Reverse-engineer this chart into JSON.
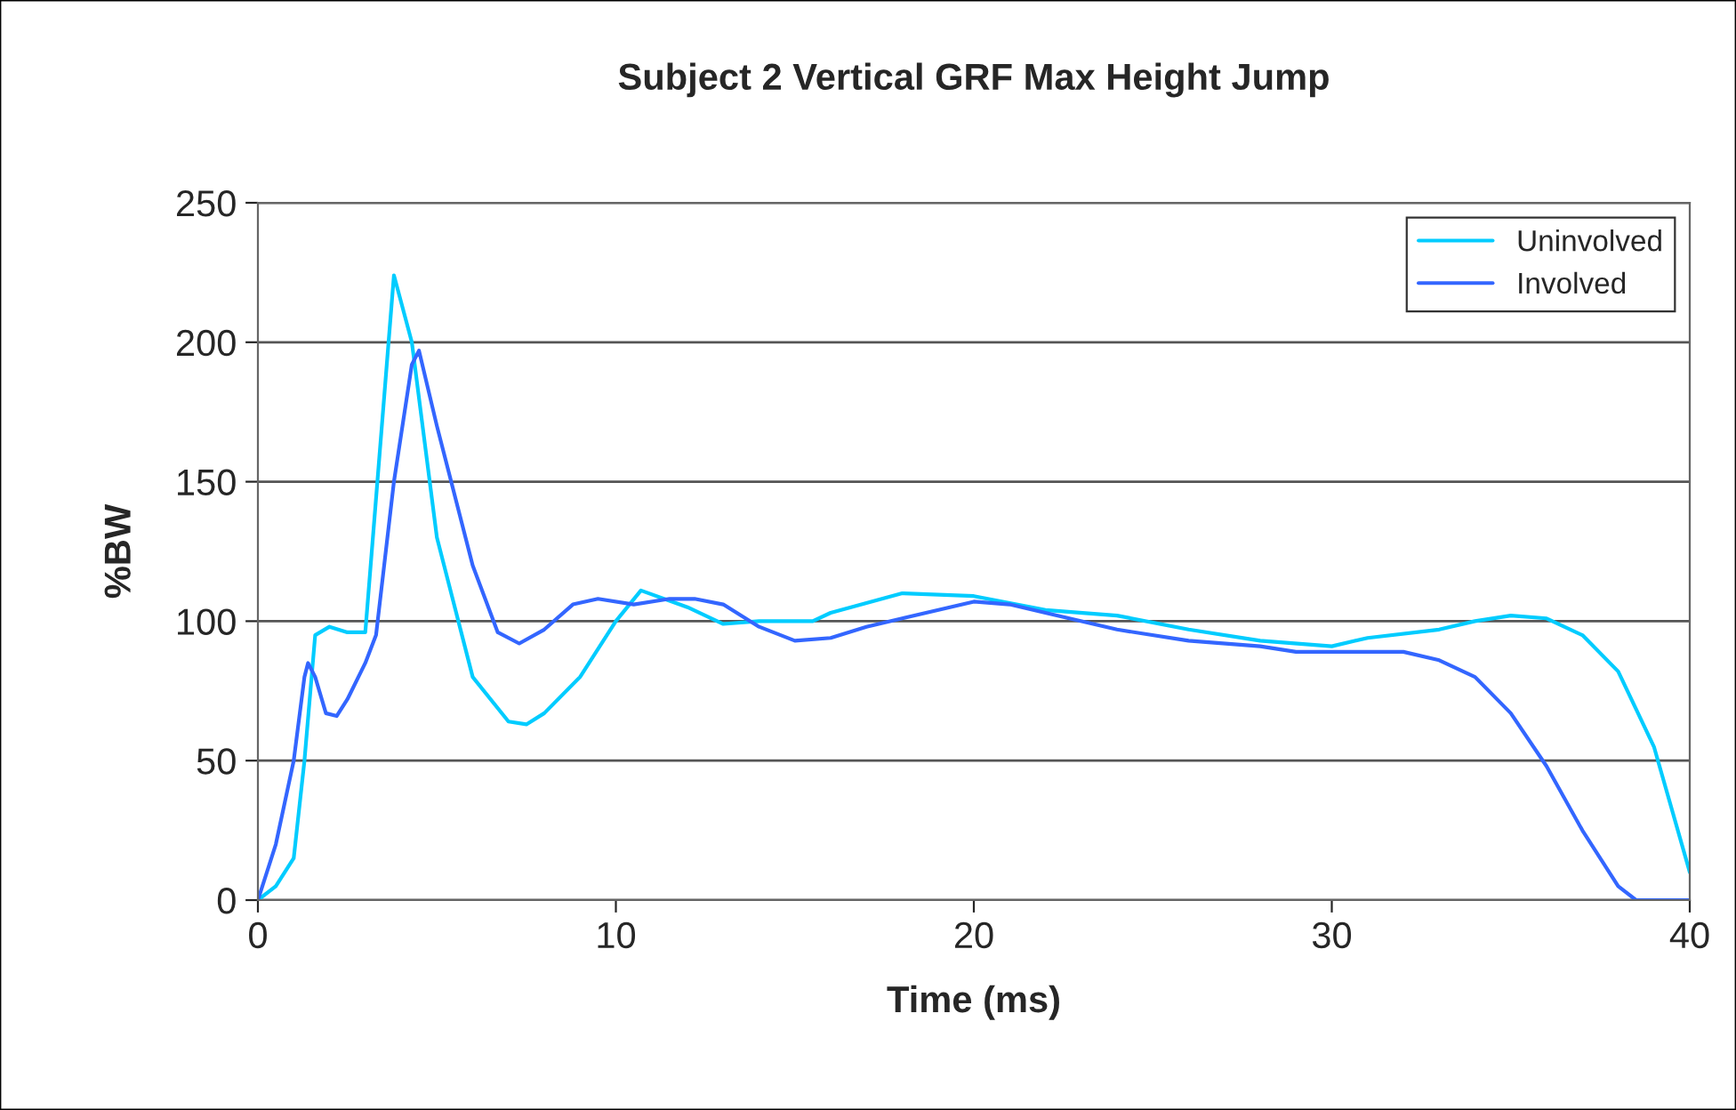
{
  "chart_data": {
    "type": "line",
    "title": "Subject 2 Vertical GRF Max Height Jump",
    "xlabel": "Time (ms)",
    "ylabel": "%BW",
    "xlim": [
      0,
      40
    ],
    "xticks": [
      0,
      10,
      20,
      30,
      40
    ],
    "ylim": [
      0,
      250
    ],
    "yticks": [
      0,
      50,
      100,
      150,
      200,
      250
    ],
    "grid": "y",
    "legend": "top right",
    "marker": "none",
    "line_style": "solid",
    "series": [
      {
        "name": "Uninvolved",
        "color": "#00ccff",
        "x": [
          0,
          0.5,
          1,
          1.3,
          1.5,
          1.6,
          2,
          2.5,
          3,
          3.4,
          3.8,
          4.3,
          5,
          6,
          7,
          7.5,
          8,
          9,
          10,
          10.7,
          12,
          13,
          14,
          15.5,
          16,
          18,
          20,
          22,
          24,
          26,
          28,
          30,
          31,
          33,
          34,
          35,
          36,
          37,
          38,
          39,
          40
        ],
        "values": [
          0,
          5,
          15,
          50,
          80,
          95,
          98,
          96,
          96,
          160,
          224,
          200,
          130,
          80,
          64,
          63,
          67,
          80,
          100,
          111,
          105,
          99,
          100,
          100,
          103,
          110,
          109,
          104,
          102,
          97,
          93,
          91,
          94,
          97,
          100,
          102,
          101,
          95,
          82,
          55,
          10
        ]
      },
      {
        "name": "Involved",
        "color": "#3366ff",
        "x": [
          0,
          0.5,
          1,
          1.3,
          1.4,
          1.6,
          1.9,
          2.2,
          2.5,
          3,
          3.3,
          3.8,
          4.3,
          4.5,
          5,
          6,
          6.7,
          7.3,
          8,
          8.8,
          9.5,
          10.5,
          11.5,
          12.2,
          13,
          14,
          15,
          16,
          17,
          18,
          20,
          21,
          22,
          24,
          26,
          28,
          29,
          32,
          33,
          34,
          35,
          36,
          37,
          38,
          38.5,
          40
        ],
        "values": [
          0,
          20,
          50,
          80,
          85,
          80,
          67,
          66,
          72,
          85,
          95,
          150,
          192,
          197,
          170,
          120,
          96,
          92,
          97,
          106,
          108,
          106,
          108,
          108,
          106,
          98,
          93,
          94,
          98,
          101,
          107,
          106,
          103,
          97,
          93,
          91,
          89,
          89,
          86,
          80,
          67,
          48,
          25,
          5,
          0,
          0
        ]
      }
    ]
  }
}
